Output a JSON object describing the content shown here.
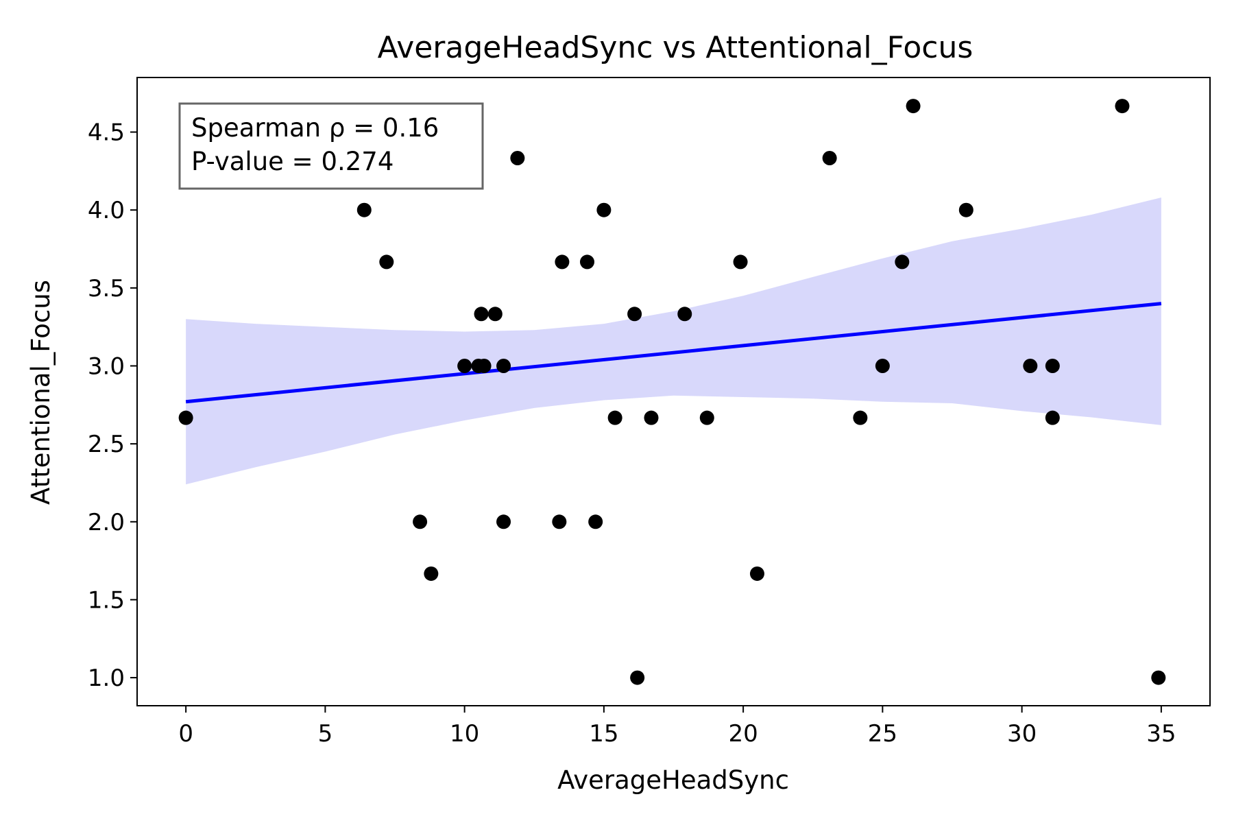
{
  "chart_data": {
    "type": "scatter",
    "title": "AverageHeadSync vs Attentional_Focus",
    "xlabel": "AverageHeadSync",
    "ylabel": "Attentional_Focus",
    "xlim": [
      -1.75,
      36.75
    ],
    "ylim": [
      0.82,
      4.85
    ],
    "xticks": [
      0,
      5,
      10,
      15,
      20,
      25,
      30,
      35
    ],
    "xtick_labels": [
      "0",
      "5",
      "10",
      "15",
      "20",
      "25",
      "30",
      "35"
    ],
    "yticks": [
      1.0,
      1.5,
      2.0,
      2.5,
      3.0,
      3.5,
      4.0,
      4.5
    ],
    "ytick_labels": [
      "1.0",
      "1.5",
      "2.0",
      "2.5",
      "3.0",
      "3.5",
      "4.0",
      "4.5"
    ],
    "grid": false,
    "points": [
      {
        "x": 0.0,
        "y": 2.667
      },
      {
        "x": 6.4,
        "y": 4.0
      },
      {
        "x": 7.2,
        "y": 3.667
      },
      {
        "x": 8.4,
        "y": 2.0
      },
      {
        "x": 8.8,
        "y": 1.667
      },
      {
        "x": 10.0,
        "y": 3.0
      },
      {
        "x": 10.5,
        "y": 3.0
      },
      {
        "x": 10.6,
        "y": 3.333
      },
      {
        "x": 10.7,
        "y": 3.0
      },
      {
        "x": 11.1,
        "y": 3.333
      },
      {
        "x": 11.4,
        "y": 3.0
      },
      {
        "x": 11.4,
        "y": 2.0
      },
      {
        "x": 11.9,
        "y": 4.333
      },
      {
        "x": 13.4,
        "y": 2.0
      },
      {
        "x": 13.5,
        "y": 3.667
      },
      {
        "x": 14.4,
        "y": 3.667
      },
      {
        "x": 14.7,
        "y": 2.0
      },
      {
        "x": 15.0,
        "y": 4.0
      },
      {
        "x": 15.4,
        "y": 2.667
      },
      {
        "x": 16.1,
        "y": 3.333
      },
      {
        "x": 16.2,
        "y": 1.0
      },
      {
        "x": 16.7,
        "y": 2.667
      },
      {
        "x": 17.9,
        "y": 3.333
      },
      {
        "x": 18.7,
        "y": 2.667
      },
      {
        "x": 19.9,
        "y": 3.667
      },
      {
        "x": 20.5,
        "y": 1.667
      },
      {
        "x": 23.1,
        "y": 4.333
      },
      {
        "x": 24.2,
        "y": 2.667
      },
      {
        "x": 25.0,
        "y": 3.0
      },
      {
        "x": 25.7,
        "y": 3.667
      },
      {
        "x": 26.1,
        "y": 4.667
      },
      {
        "x": 28.0,
        "y": 4.0
      },
      {
        "x": 30.3,
        "y": 3.0
      },
      {
        "x": 31.1,
        "y": 3.0
      },
      {
        "x": 31.1,
        "y": 2.667
      },
      {
        "x": 33.6,
        "y": 4.667
      },
      {
        "x": 34.9,
        "y": 1.0
      }
    ],
    "regression_line": {
      "x": [
        0.0,
        35.0
      ],
      "y": [
        2.77,
        3.4
      ],
      "color": "#0000ff"
    },
    "confidence_band": {
      "color": "#d8d8fb",
      "x": [
        0.0,
        2.5,
        5.0,
        7.5,
        10.0,
        12.5,
        15.0,
        17.5,
        20.0,
        22.5,
        25.0,
        27.5,
        30.0,
        32.5,
        35.0
      ],
      "upper": [
        3.3,
        3.27,
        3.25,
        3.23,
        3.22,
        3.23,
        3.27,
        3.35,
        3.45,
        3.57,
        3.69,
        3.8,
        3.88,
        3.97,
        4.08
      ],
      "lower": [
        2.24,
        2.35,
        2.45,
        2.56,
        2.65,
        2.73,
        2.78,
        2.81,
        2.8,
        2.79,
        2.77,
        2.76,
        2.71,
        2.67,
        2.62
      ]
    },
    "point_color": "#000000",
    "annotation": {
      "line1": "Spearman ρ = 0.16",
      "line2": "P-value = 0.274",
      "placement": "top-left"
    }
  }
}
